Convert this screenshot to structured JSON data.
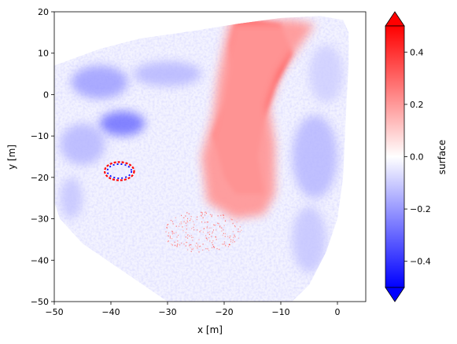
{
  "chart_data": {
    "type": "heatmap",
    "xlabel": "x [m]",
    "ylabel": "y [m]",
    "xlim": [
      -50,
      5
    ],
    "ylim": [
      -50,
      20
    ],
    "x_ticks": [
      {
        "value": -50,
        "label": "−50"
      },
      {
        "value": -40,
        "label": "−40"
      },
      {
        "value": -30,
        "label": "−30"
      },
      {
        "value": -20,
        "label": "−20"
      },
      {
        "value": -10,
        "label": "−10"
      },
      {
        "value": 0,
        "label": "0"
      }
    ],
    "y_ticks": [
      {
        "value": -50,
        "label": "−50"
      },
      {
        "value": -40,
        "label": "−40"
      },
      {
        "value": -30,
        "label": "−30"
      },
      {
        "value": -20,
        "label": "−20"
      },
      {
        "value": -10,
        "label": "−10"
      },
      {
        "value": 0,
        "label": "0"
      },
      {
        "value": 10,
        "label": "10"
      },
      {
        "value": 20,
        "label": "20"
      }
    ],
    "grid": false,
    "colorbar": {
      "label": "surface",
      "vmin": -0.5,
      "vmax": 0.5,
      "extend": "both",
      "colormap": "bwr",
      "colors": {
        "low": "#0000ff",
        "mid": "#ffffff",
        "high": "#ff0000"
      },
      "ticks": [
        {
          "value": -0.4,
          "label": "−0.4"
        },
        {
          "value": -0.2,
          "label": "−0.2"
        },
        {
          "value": 0.0,
          "label": "0.0"
        },
        {
          "value": 0.2,
          "label": "0.2"
        },
        {
          "value": 0.4,
          "label": "0.4"
        }
      ]
    },
    "footprint": [
      [
        -50,
        7
      ],
      [
        -42,
        11
      ],
      [
        -35,
        13.5
      ],
      [
        -25,
        15.5
      ],
      [
        -18,
        17
      ],
      [
        -10,
        18.5
      ],
      [
        -3,
        19
      ],
      [
        1,
        18
      ],
      [
        2,
        15
      ],
      [
        2,
        8
      ],
      [
        1.5,
        -5
      ],
      [
        1,
        -20
      ],
      [
        0,
        -30
      ],
      [
        -2,
        -38
      ],
      [
        -5,
        -46
      ],
      [
        -8,
        -50
      ],
      [
        -30,
        -50
      ],
      [
        -45,
        -36
      ],
      [
        -49,
        -30
      ],
      [
        -50,
        -26
      ]
    ],
    "regions": [
      {
        "shape": "band",
        "value": 0.45,
        "path": [
          [
            -15,
            18
          ],
          [
            -10,
            17
          ],
          [
            -8,
            10
          ],
          [
            -11,
            2
          ],
          [
            -13,
            -6
          ],
          [
            -14,
            -15
          ],
          [
            -13,
            -24
          ],
          [
            -18,
            -24
          ],
          [
            -20,
            -20
          ],
          [
            -22,
            -10
          ],
          [
            -20,
            -2
          ],
          [
            -19,
            6
          ],
          [
            -19,
            12
          ],
          [
            -18,
            18
          ]
        ]
      },
      {
        "shape": "band",
        "value": 0.2,
        "path": [
          [
            -8,
            18
          ],
          [
            -4,
            17
          ],
          [
            -7,
            11
          ],
          [
            -10,
            5
          ],
          [
            -12,
            -3
          ],
          [
            -11,
            -12
          ],
          [
            -11,
            -24
          ],
          [
            -13,
            -29
          ],
          [
            -18,
            -30
          ],
          [
            -23,
            -26
          ],
          [
            -24,
            -15
          ],
          [
            -22,
            -5
          ],
          [
            -21,
            5
          ],
          [
            -20,
            12
          ],
          [
            -19,
            18
          ]
        ]
      },
      {
        "shape": "blob",
        "value": -0.3,
        "cx": -38,
        "cy": -7,
        "rx": 4,
        "ry": 3
      },
      {
        "shape": "blob",
        "value": -0.2,
        "cx": -42,
        "cy": 3,
        "rx": 5,
        "ry": 4
      },
      {
        "shape": "blob",
        "value": -0.15,
        "cx": -45,
        "cy": -12,
        "rx": 4,
        "ry": 5
      },
      {
        "shape": "blob",
        "value": -0.15,
        "cx": -30,
        "cy": 5,
        "rx": 6,
        "ry": 3
      },
      {
        "shape": "blob",
        "value": -0.15,
        "cx": -4,
        "cy": -15,
        "rx": 4,
        "ry": 10
      },
      {
        "shape": "blob",
        "value": -0.12,
        "cx": -5,
        "cy": -35,
        "rx": 3,
        "ry": 8
      },
      {
        "shape": "blob",
        "value": -0.1,
        "cx": -2,
        "cy": 5,
        "rx": 3,
        "ry": 7
      },
      {
        "shape": "blob",
        "value": -0.12,
        "cx": -47,
        "cy": -25,
        "rx": 2,
        "ry": 5
      },
      {
        "shape": "ring",
        "cx": -38.5,
        "cy": -18.5,
        "rx": 2.6,
        "ry": 2.2,
        "value": 0.5
      },
      {
        "shape": "speckle",
        "value": 0.3,
        "cx": -24,
        "cy": -33,
        "rx": 7,
        "ry": 5
      }
    ]
  }
}
